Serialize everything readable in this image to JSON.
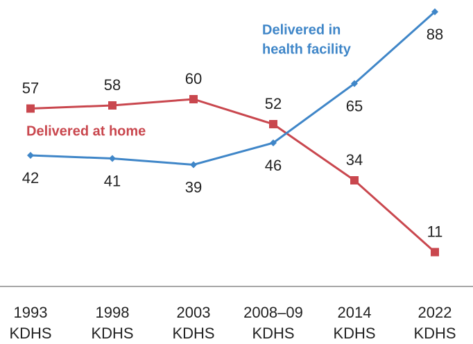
{
  "chart_data": {
    "type": "line",
    "categories": [
      [
        "1993",
        "KDHS"
      ],
      [
        "1998",
        "KDHS"
      ],
      [
        "2003",
        "KDHS"
      ],
      [
        "2008–09",
        "KDHS"
      ],
      [
        "2014",
        "KDHS"
      ],
      [
        "2022",
        "KDHS"
      ]
    ],
    "series": [
      {
        "name": [
          "Delivered at home"
        ],
        "color": "#c9474e",
        "marker": "square",
        "label_side": "above",
        "values": [
          57,
          58,
          60,
          52,
          34,
          11
        ]
      },
      {
        "name": [
          "Delivered in",
          "health facility"
        ],
        "color": "#3f86c8",
        "marker": "diamond",
        "label_side": "below",
        "values": [
          42,
          41,
          39,
          46,
          65,
          88
        ]
      }
    ],
    "ylim": [
      0,
      90
    ]
  }
}
